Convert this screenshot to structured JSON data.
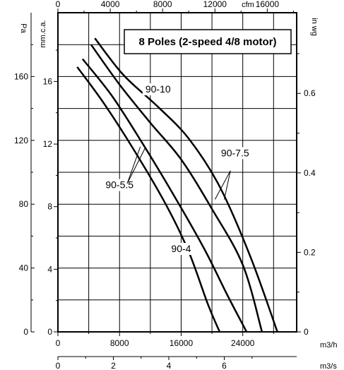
{
  "chart_data": {
    "type": "line",
    "title": "8 Poles (2-speed 4/8 motor)",
    "x_primary": {
      "label": "m3/h",
      "ticks": [
        0,
        8000,
        16000,
        24000
      ],
      "range": [
        0,
        31000
      ]
    },
    "x_top": {
      "label": "cfm",
      "ticks": [
        0,
        4000,
        8000,
        12000,
        16000
      ]
    },
    "x_bottom2": {
      "label": "m3/s",
      "ticks": [
        0,
        2,
        4,
        6
      ]
    },
    "y_primary": {
      "label": "Pa",
      "ticks": [
        0,
        40,
        80,
        120,
        160
      ],
      "range": [
        0,
        200
      ]
    },
    "y_left2": {
      "label": "mm.c.a.",
      "ticks": [
        0,
        4,
        8,
        12,
        16
      ]
    },
    "y_right": {
      "label": "in wg",
      "ticks": [
        0,
        0.2,
        0.4,
        0.6
      ]
    },
    "grid": true,
    "series": [
      {
        "name": "90-4",
        "label_at": [
          16000,
          50
        ],
        "points": [
          [
            2500,
            166
          ],
          [
            6000,
            143
          ],
          [
            10000,
            113
          ],
          [
            14000,
            80
          ],
          [
            17000,
            50
          ],
          [
            19500,
            17
          ],
          [
            21000,
            0
          ]
        ]
      },
      {
        "name": "90-5.5",
        "label_at": [
          8000,
          90
        ],
        "points": [
          [
            3200,
            171
          ],
          [
            7000,
            148
          ],
          [
            11000,
            118
          ],
          [
            15000,
            86
          ],
          [
            19000,
            52
          ],
          [
            22000,
            23
          ],
          [
            24500,
            0
          ]
        ]
      },
      {
        "name": "90-7.5",
        "label_at": [
          23000,
          110
        ],
        "points": [
          [
            4300,
            180
          ],
          [
            8000,
            155
          ],
          [
            12000,
            131
          ],
          [
            16000,
            108
          ],
          [
            20000,
            77
          ],
          [
            24000,
            42
          ],
          [
            26500,
            0
          ]
        ]
      },
      {
        "name": "90-10",
        "label_at": [
          13000,
          150
        ],
        "points": [
          [
            4800,
            184
          ],
          [
            8500,
            161
          ],
          [
            13000,
            141
          ],
          [
            17000,
            121
          ],
          [
            21000,
            91
          ],
          [
            25000,
            47
          ],
          [
            28500,
            0
          ]
        ]
      }
    ]
  }
}
